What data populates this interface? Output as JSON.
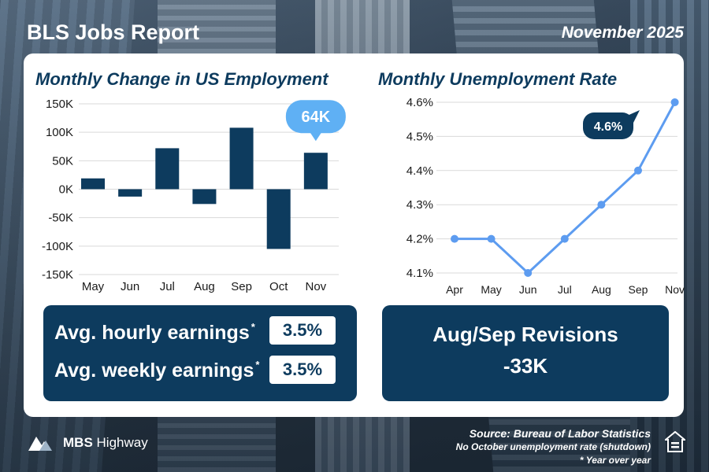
{
  "header": {
    "title": "BLS Jobs Report",
    "date": "November 2025"
  },
  "chart_data": [
    {
      "type": "bar",
      "title": "Monthly Change in US Employment",
      "categories": [
        "May",
        "Jun",
        "Jul",
        "Aug",
        "Sep",
        "Oct",
        "Nov"
      ],
      "values": [
        19,
        -13,
        72,
        -26,
        108,
        -105,
        64
      ],
      "yticks": [
        "150K",
        "100K",
        "50K",
        "0K",
        "-50K",
        "-100K",
        "-150K"
      ],
      "ylim": [
        -150,
        150
      ],
      "callout": "64K",
      "color": "#0d3b5e",
      "callout_color": "#5fb0f4"
    },
    {
      "type": "line",
      "title": "Monthly Unemployment Rate",
      "categories": [
        "Apr",
        "May",
        "Jun",
        "Jul",
        "Aug",
        "Sep",
        "Nov"
      ],
      "values": [
        4.2,
        4.2,
        4.1,
        4.2,
        4.3,
        4.4,
        4.6
      ],
      "yticks": [
        "4.6%",
        "4.5%",
        "4.4%",
        "4.3%",
        "4.2%",
        "4.1%"
      ],
      "ylim": [
        4.1,
        4.6
      ],
      "callout": "4.6%",
      "line_color": "#5d9cf0",
      "callout_color": "#0d3b5e"
    }
  ],
  "earnings": {
    "hourly_label": "Avg. hourly earnings",
    "hourly_value": "3.5%",
    "weekly_label": "Avg. weekly earnings",
    "weekly_value": "3.5%",
    "footnote_mark": "*"
  },
  "revisions": {
    "title": "Aug/Sep Revisions",
    "value": "-33K"
  },
  "footer": {
    "logo_bold": "MBS",
    "logo_rest": "Highway",
    "source": "Source: Bureau of Labor Statistics",
    "note": "No October unemployment rate (shutdown)",
    "yoy": "* Year over year"
  }
}
